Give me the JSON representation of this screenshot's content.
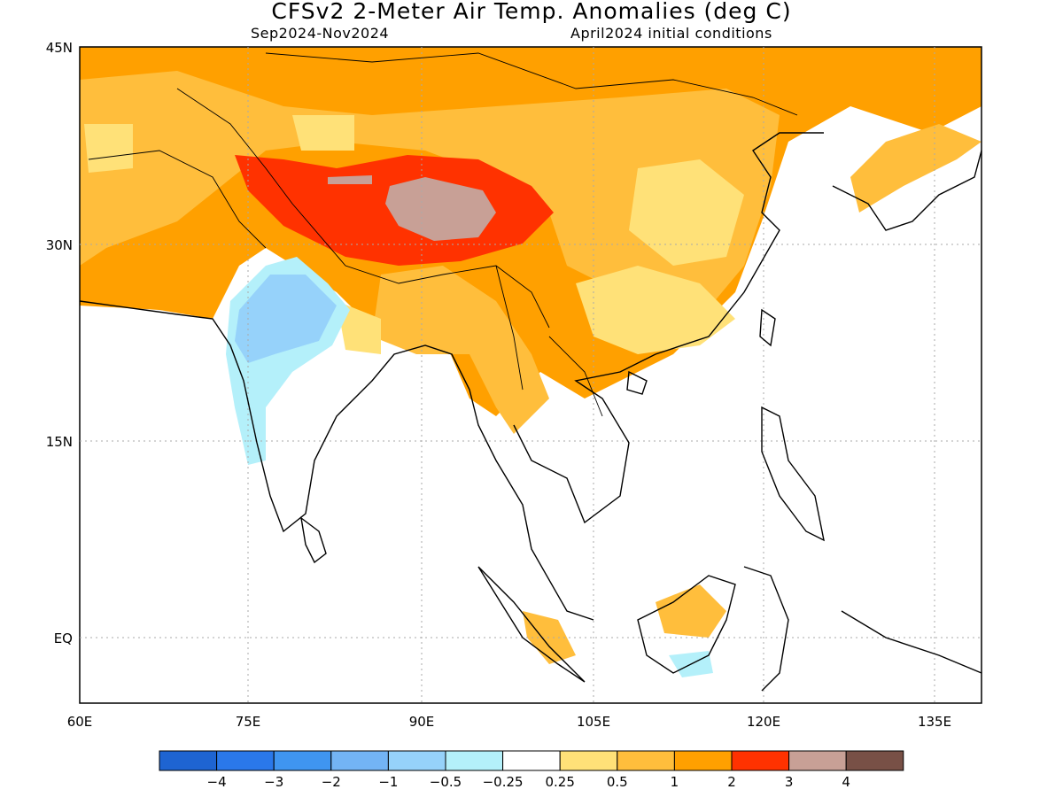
{
  "title": "CFSv2 2-Meter Air Temp. Anomalies (deg C)",
  "subtitle_left": "Sep2024-Nov2024",
  "subtitle_right": "April2024 initial conditions",
  "map": {
    "lon_ticks": [
      "60E",
      "75E",
      "90E",
      "105E",
      "120E",
      "135E"
    ],
    "lat_ticks": [
      "45N",
      "30N",
      "15N",
      "EQ"
    ],
    "lon_range": [
      60,
      140
    ],
    "lat_range": [
      -5,
      45
    ],
    "grid": "dotted"
  },
  "colorbar": {
    "colors": [
      "#1e64d2",
      "#2a78ea",
      "#3f95f0",
      "#73b4f5",
      "#96d2fa",
      "#b4f0fa",
      "#ffffff",
      "#ffe178",
      "#ffbe3c",
      "#ffa000",
      "#ff3200",
      "#c8a096",
      "#785046"
    ],
    "labels": [
      "-4",
      "-3",
      "-2",
      "-1",
      "-0.5",
      "-0.25",
      "0.25",
      "0.5",
      "1",
      "2",
      "3",
      "4"
    ]
  },
  "colors": {
    "coast": "#000000",
    "grid": "#aaaaaa"
  }
}
